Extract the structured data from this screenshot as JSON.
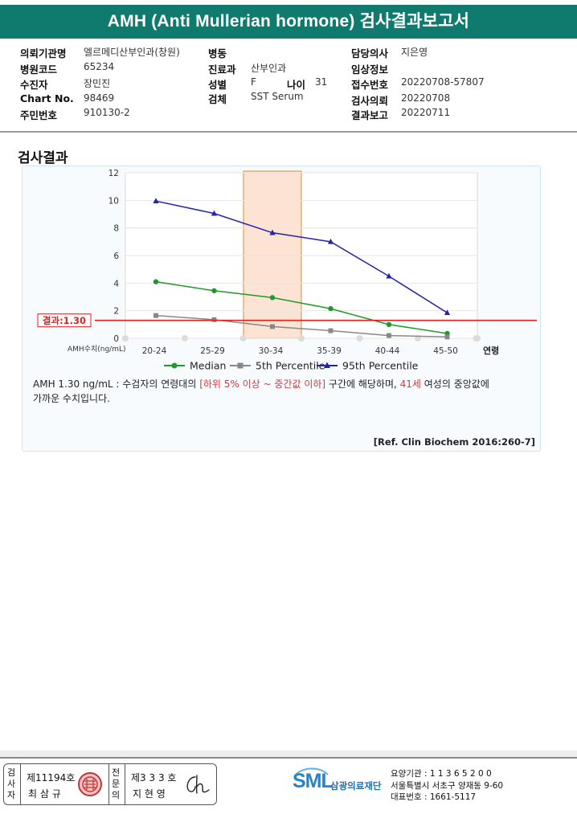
{
  "report": {
    "title": "AMH (Anti Mullerian hormone) 검사결과보고서",
    "section_title": "검사결과"
  },
  "info": {
    "col1": [
      {
        "label": "의뢰기관명",
        "value": "엘르메디산부인과(창원)"
      },
      {
        "label": "병원코드",
        "value": "65234"
      },
      {
        "label": "수진자",
        "value": "장민진"
      },
      {
        "label": "Chart No.",
        "value": "98469"
      },
      {
        "label": "주민번호",
        "value": "910130-2"
      }
    ],
    "col2": [
      {
        "label": "병동",
        "value": ""
      },
      {
        "label": "진료과",
        "value": "산부인과"
      },
      {
        "label": "성별",
        "value": "F"
      },
      {
        "label": "검체",
        "value": "SST Serum"
      }
    ],
    "age": {
      "label": "나이",
      "value": "31"
    },
    "col3": [
      {
        "label": "담당의사",
        "value": "지은영"
      },
      {
        "label": "임상정보",
        "value": ""
      },
      {
        "label": "접수번호",
        "value": "20220708-57807"
      },
      {
        "label": "검사의뢰",
        "value": "20220708"
      },
      {
        "label": "결과보고",
        "value": "20220711"
      }
    ]
  },
  "chart_data": {
    "type": "line",
    "categories": [
      "20-24",
      "25-29",
      "30-34",
      "35-39",
      "40-44",
      "45-50"
    ],
    "series": [
      {
        "name": "Median",
        "values": [
          4.1,
          3.45,
          2.95,
          2.15,
          1.0,
          0.35
        ],
        "color": "#1e9a2a",
        "marker": "circle"
      },
      {
        "name": "5th Percentile",
        "values": [
          1.65,
          1.35,
          0.85,
          0.55,
          0.2,
          0.1
        ],
        "color": "#888888",
        "marker": "square"
      },
      {
        "name": "95th Percentile",
        "values": [
          9.95,
          9.05,
          7.65,
          7.0,
          4.5,
          1.85
        ],
        "color": "#2323a8",
        "marker": "triangle"
      }
    ],
    "ylim": [
      0,
      12
    ],
    "yticks": [
      "0",
      "2",
      "4",
      "6",
      "8",
      "10",
      "12"
    ],
    "ylabel": "AMH수치(ng/mL)",
    "xlabel": "연령",
    "highlight_category": "30-34",
    "result": {
      "label": "결과:1.30",
      "value": 1.3,
      "color": "#e02020"
    },
    "legend_position": "bottom"
  },
  "description": {
    "part1": "AMH  1.30 ng/mL : 수검자의 연령대의 ",
    "red1": "[하위 5% 이상 ~ 중간값 이하]",
    "part2": "  구간에 해당하며, ",
    "red2": "41세",
    "part3": " 여성의 중앙값에",
    "line2": "가까운 수치입니다."
  },
  "reference": "[Ref. Clin Biochem 2016:260-7]",
  "signature": {
    "examiner_label": "검사자",
    "examiner_no": "제11194호",
    "examiner_name": "최 삼 규",
    "specialist_label": "전문의",
    "specialist_no": "제3 3 3 호",
    "specialist_name": "지 현 영"
  },
  "organization": {
    "logo": "SML",
    "name": "삼광의료재단",
    "code": "요양기관 : 1 1 3 6 5 2 0 0",
    "address": "서울특별시 서초구 양재동 9-60",
    "phone": "대표번호 : 1661-5117"
  }
}
